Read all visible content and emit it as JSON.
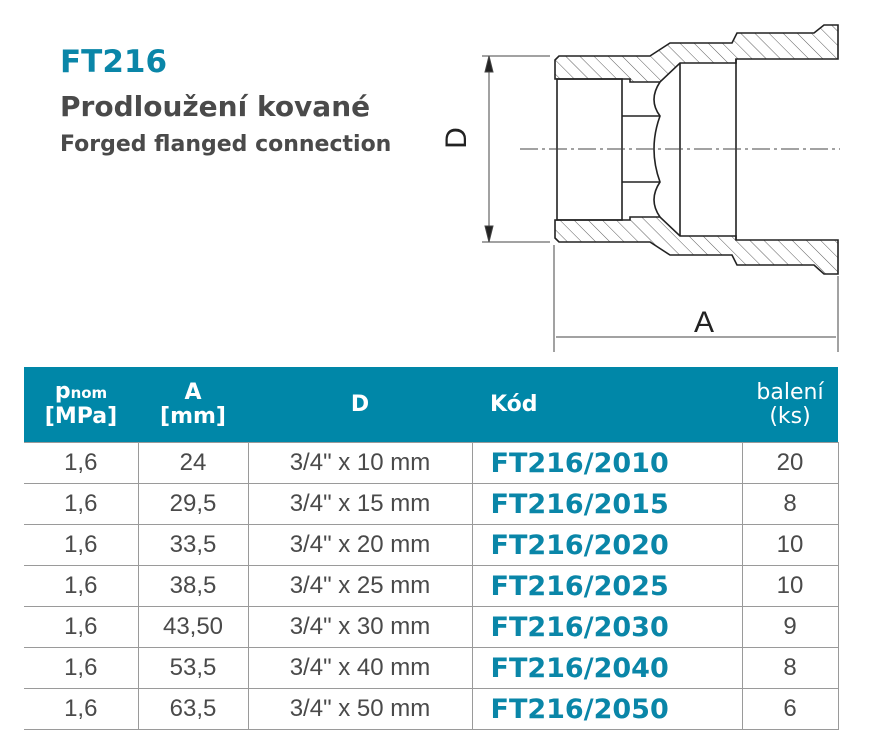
{
  "product": {
    "code": "FT216",
    "title_cz": "Prodloužení kované",
    "title_en": "Forged flanged connection"
  },
  "drawing": {
    "label_d": "D",
    "label_a": "A"
  },
  "table": {
    "headers": {
      "p_main": "p",
      "p_sub": "nom",
      "p_unit": "[MPa]",
      "a_main": "A",
      "a_unit": "[mm]",
      "d": "D",
      "kod": "Kód",
      "pack_main": "balení",
      "pack_unit": "(ks)"
    },
    "rows": [
      {
        "p": "1,6",
        "a": "24",
        "d": "3/4\" x 10 mm",
        "kod": "FT216/2010",
        "pack": "20"
      },
      {
        "p": "1,6",
        "a": "29,5",
        "d": "3/4\" x 15 mm",
        "kod": "FT216/2015",
        "pack": "8"
      },
      {
        "p": "1,6",
        "a": "33,5",
        "d": "3/4\" x 20 mm",
        "kod": "FT216/2020",
        "pack": "10"
      },
      {
        "p": "1,6",
        "a": "38,5",
        "d": "3/4\" x 25 mm",
        "kod": "FT216/2025",
        "pack": "10"
      },
      {
        "p": "1,6",
        "a": "43,50",
        "d": "3/4\" x 30 mm",
        "kod": "FT216/2030",
        "pack": "9"
      },
      {
        "p": "1,6",
        "a": "53,5",
        "d": "3/4\" x 40 mm",
        "kod": "FT216/2040",
        "pack": "8"
      },
      {
        "p": "1,6",
        "a": "63,5",
        "d": "3/4\" x 50 mm",
        "kod": "FT216/2050",
        "pack": "6"
      }
    ]
  },
  "colors": {
    "accent": "#0087a8",
    "code_text": "#0a86a8",
    "body_text": "#4a4a4a"
  }
}
